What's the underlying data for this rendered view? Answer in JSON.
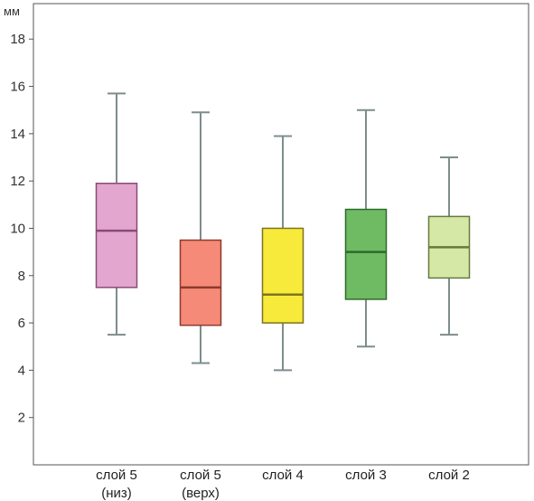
{
  "chart_data": {
    "type": "boxplot",
    "unit_label": "мм",
    "ylim": [
      0,
      19.5
    ],
    "yticks": [
      2,
      4,
      6,
      8,
      10,
      12,
      14,
      16,
      18
    ],
    "ytick_labels": [
      "2",
      "4",
      "6",
      "8",
      "10",
      "12",
      "14",
      "16",
      "18"
    ],
    "grid": false,
    "categories": [
      {
        "line1": "слой 5",
        "line2": "(низ)"
      },
      {
        "line1": "слой 5",
        "line2": "(верх)"
      },
      {
        "line1": "слой 4",
        "line2": ""
      },
      {
        "line1": "слой 3",
        "line2": ""
      },
      {
        "line1": "слой 2",
        "line2": ""
      }
    ],
    "boxes": [
      {
        "min": 5.5,
        "q1": 7.5,
        "median": 9.9,
        "q3": 11.9,
        "max": 15.7,
        "fill": "#e3a6cf",
        "edge": "#8a4a76"
      },
      {
        "min": 4.3,
        "q1": 5.9,
        "median": 7.5,
        "q3": 9.5,
        "max": 14.9,
        "fill": "#f58a78",
        "edge": "#8d3a2c"
      },
      {
        "min": 4.0,
        "q1": 6.0,
        "median": 7.2,
        "q3": 10.0,
        "max": 13.9,
        "fill": "#f8ea3a",
        "edge": "#7d7420"
      },
      {
        "min": 5.0,
        "q1": 7.0,
        "median": 9.0,
        "q3": 10.8,
        "max": 15.0,
        "fill": "#6fbb63",
        "edge": "#2f6a2b"
      },
      {
        "min": 5.5,
        "q1": 7.9,
        "median": 9.2,
        "q3": 10.5,
        "max": 13.0,
        "fill": "#d6e8a6",
        "edge": "#667a3c"
      }
    ],
    "whisker_color": "#7f8c8c",
    "axis_color": "#555555"
  }
}
